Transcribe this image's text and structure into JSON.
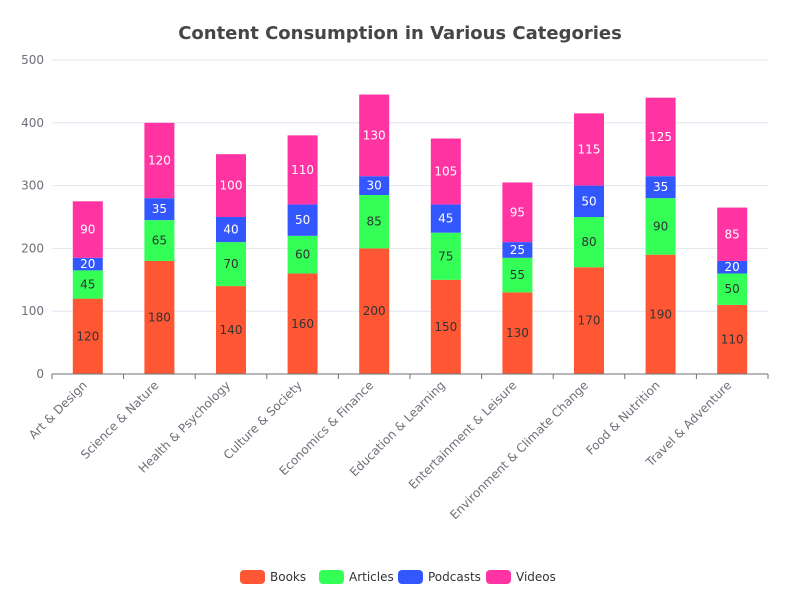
{
  "chart_data": {
    "type": "bar",
    "stacked": true,
    "title": "Content Consumption in Various Categories",
    "xlabel": "",
    "ylabel": "",
    "categories": [
      "Art & Design",
      "Science & Nature",
      "Health & Psychology",
      "Culture & Society",
      "Economics & Finance",
      "Education & Learning",
      "Entertainment & Leisure",
      "Environment & Climate Change",
      "Food & Nutrition",
      "Travel & Adventure"
    ],
    "series": [
      {
        "name": "Books",
        "color": "#ff5733",
        "label_color": "#333333",
        "values": [
          120,
          180,
          140,
          160,
          200,
          150,
          130,
          170,
          190,
          110
        ]
      },
      {
        "name": "Articles",
        "color": "#33ff57",
        "label_color": "#333333",
        "values": [
          45,
          65,
          70,
          60,
          85,
          75,
          55,
          80,
          90,
          50
        ]
      },
      {
        "name": "Podcasts",
        "color": "#3357ff",
        "label_color": "#ffffff",
        "values": [
          20,
          35,
          40,
          50,
          30,
          45,
          25,
          50,
          35,
          20
        ]
      },
      {
        "name": "Videos",
        "color": "#ff33a1",
        "label_color": "#ffffff",
        "values": [
          90,
          120,
          100,
          110,
          130,
          105,
          95,
          115,
          125,
          85
        ]
      }
    ],
    "ylim": [
      0,
      500
    ],
    "yticks": [
      0,
      100,
      200,
      300,
      400,
      500
    ],
    "grid": true,
    "legend_position": "bottom-center",
    "x_tick_rotation_deg": 45
  }
}
